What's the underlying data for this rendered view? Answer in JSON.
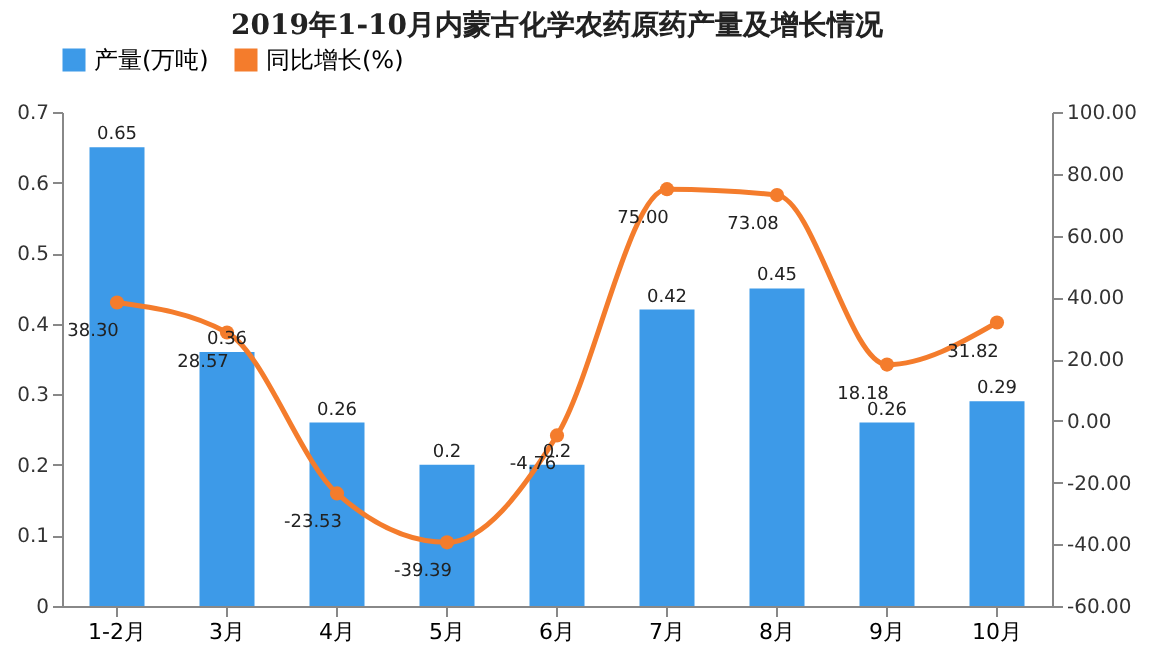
{
  "chart_data": {
    "type": "bar",
    "title": "2019年1-10月内蒙古化学农药原药产量及增长情况",
    "categories": [
      "1-2月",
      "3月",
      "4月",
      "5月",
      "6月",
      "7月",
      "8月",
      "9月",
      "10月"
    ],
    "series": [
      {
        "name": "产量(万吨)",
        "type": "bar",
        "color": "#3d9ae8",
        "values": [
          0.65,
          0.36,
          0.26,
          0.2,
          0.2,
          0.42,
          0.45,
          0.26,
          0.29
        ],
        "value_labels": [
          "0.65",
          "0.36",
          "0.26",
          "0.2",
          "0.2",
          "0.42",
          "0.45",
          "0.26",
          "0.29"
        ]
      },
      {
        "name": "同比增长(%)",
        "type": "line",
        "axis": "y2",
        "color": "#f47c2c",
        "values": [
          38.3,
          28.57,
          -23.53,
          -39.39,
          -4.76,
          75,
          73.08,
          18.18,
          31.82
        ],
        "value_labels": [
          "38.30",
          "28.57",
          "-23.53",
          "-39.39",
          "-4.76",
          "75.00",
          "73.08",
          "18.18",
          "31.82"
        ]
      }
    ],
    "ylim": [
      0,
      0.7
    ],
    "yticks": [
      0,
      0.1,
      0.2,
      0.3,
      0.4,
      0.5,
      0.6,
      0.7
    ],
    "y2lim": [
      -60,
      100
    ],
    "y2ticks": [
      {
        "value": -60,
        "label": "-60.00"
      },
      {
        "value": -40,
        "label": "-40.00"
      },
      {
        "value": -20,
        "label": "-20.00"
      },
      {
        "value": 0,
        "label": "0.00"
      },
      {
        "value": 20,
        "label": "20.00"
      },
      {
        "value": 40,
        "label": "40.00"
      },
      {
        "value": 60,
        "label": "60.00"
      },
      {
        "value": 80,
        "label": "80.00"
      },
      {
        "value": 100,
        "label": "100.00"
      }
    ],
    "legend": "top",
    "grid": false,
    "marker": "circle"
  }
}
